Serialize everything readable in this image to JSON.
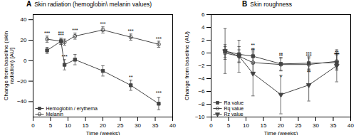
{
  "chart_data": [
    {
      "type": "line",
      "panel_label": "A",
      "title": "Skin radiation (hemoglobin\\ melanin values)",
      "xlabel": "Time (weeks)",
      "ylabel": "Change from baseline (skin radiation) [AU]",
      "xlim": [
        0,
        40
      ],
      "ylim": [
        -55,
        45
      ],
      "xticks": [
        0,
        5,
        10,
        15,
        20,
        25,
        30,
        35,
        40
      ],
      "yticks": [
        -40,
        -20,
        0,
        20,
        40
      ],
      "legend": "lower left",
      "series": [
        {
          "name": "Hemoglobin / erythema",
          "color": "#444444",
          "marker": "square",
          "x": [
            4,
            8,
            9,
            12,
            20,
            28,
            36
          ],
          "values": [
            10,
            19,
            -4,
            1,
            -10,
            -24,
            -42
          ],
          "yerr": [
            3,
            3,
            5,
            5,
            5,
            5,
            6
          ]
        },
        {
          "name": "Melanin",
          "color": "#444444",
          "marker": "circle-open",
          "x": [
            4,
            8,
            9,
            12,
            20,
            28,
            36
          ],
          "values": [
            21,
            19,
            18,
            24,
            30,
            23,
            16
          ],
          "yerr": [
            3,
            3,
            3,
            3,
            3,
            3,
            3
          ]
        }
      ],
      "annotations": [
        {
          "x": 8,
          "y": 23,
          "text": "***"
        },
        {
          "x": 9,
          "y": 2,
          "text": "***"
        },
        {
          "x": 28,
          "y": -18,
          "text": "**"
        },
        {
          "x": 36,
          "y": -33,
          "text": "***"
        },
        {
          "x": 4,
          "y": 25,
          "text": "***"
        },
        {
          "x": 8,
          "y": 25,
          "text": "***"
        },
        {
          "x": 12,
          "y": 28,
          "text": "***"
        },
        {
          "x": 20,
          "y": 34,
          "text": "***"
        },
        {
          "x": 28,
          "y": 27,
          "text": "***"
        },
        {
          "x": 36,
          "y": 20,
          "text": "***"
        }
      ]
    },
    {
      "type": "line",
      "panel_label": "B",
      "title": "Skin roughness",
      "xlabel": "Time (weeks)",
      "ylabel": "Change from baseline (AU)",
      "xlim": [
        0,
        40
      ],
      "ylim": [
        -10,
        6
      ],
      "xticks": [
        0,
        5,
        10,
        15,
        20,
        25,
        30,
        35,
        40
      ],
      "yticks": [
        -10,
        -8,
        -6,
        -4,
        -2,
        0,
        2,
        4,
        6
      ],
      "legend": "lower left",
      "series": [
        {
          "name": "Ra value",
          "color": "#444444",
          "marker": "square",
          "x": [
            4,
            8,
            12,
            20,
            28,
            36
          ],
          "values": [
            0.3,
            -0.2,
            -0.5,
            -1.7,
            -1.6,
            -1.5
          ],
          "yerr": [
            1.0,
            1.2,
            1.2,
            1.0,
            1.0,
            1.2
          ]
        },
        {
          "name": "Rq value",
          "color": "#444444",
          "marker": "circle-open",
          "x": [
            4,
            8,
            12,
            20,
            28,
            36
          ],
          "values": [
            0.0,
            -0.5,
            -1.5,
            -1.8,
            -1.8,
            -1.3
          ],
          "yerr": [
            1.0,
            1.0,
            1.5,
            1.0,
            1.0,
            1.2
          ]
        },
        {
          "name": "Rz value",
          "color": "#444444",
          "marker": "triangle-down",
          "x": [
            4,
            8,
            12,
            20,
            28,
            36
          ],
          "values": [
            0.3,
            -0.5,
            -3.2,
            -6.5,
            -5.0,
            -2.0
          ],
          "yerr": [
            3.5,
            2.5,
            3.5,
            3.0,
            2.5,
            2.5
          ]
        }
      ],
      "annotations": [
        {
          "x": 12,
          "y": 0.9,
          "text": "**"
        },
        {
          "x": 20,
          "y": -0.5,
          "text": "**"
        },
        {
          "x": 28,
          "y": -0.4,
          "text": "***"
        },
        {
          "x": 36,
          "y": -0.2,
          "text": "**"
        },
        {
          "x": 12,
          "y": 0.2,
          "text": "**"
        },
        {
          "x": 20,
          "y": -0.7,
          "text": "**"
        },
        {
          "x": 28,
          "y": -0.7,
          "text": "***"
        },
        {
          "x": 36,
          "y": -0.5,
          "text": "**"
        },
        {
          "x": 20,
          "y": -4.0,
          "text": "*"
        },
        {
          "x": 28,
          "y": -3.3,
          "text": "**"
        },
        {
          "x": 36,
          "y": -0.5,
          "text": "***"
        }
      ]
    }
  ]
}
